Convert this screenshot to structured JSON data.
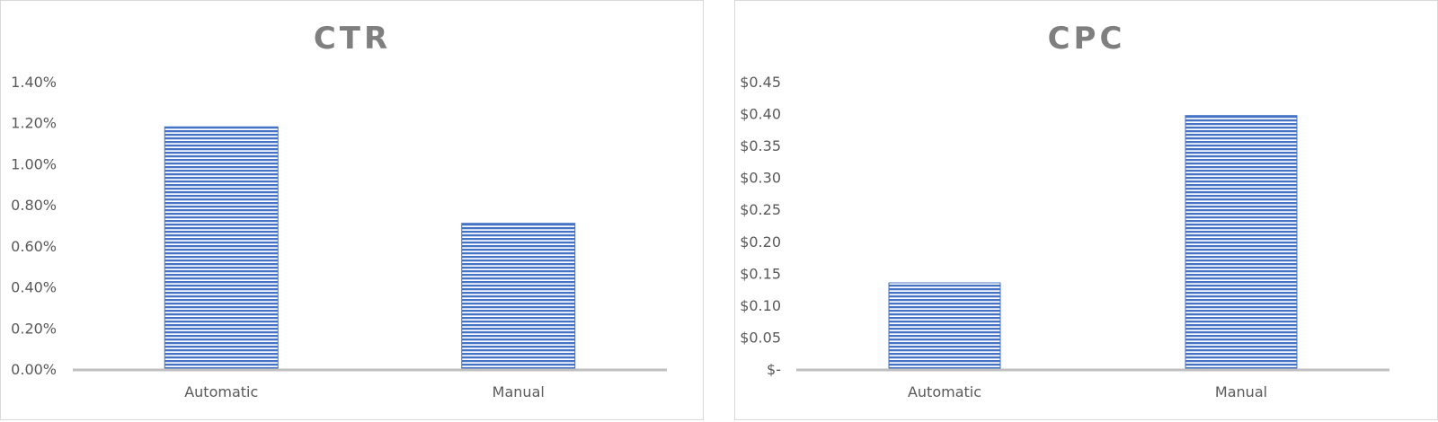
{
  "chart_data": [
    {
      "type": "bar",
      "title": "CTR",
      "categories": [
        "Automatic",
        "Manual"
      ],
      "values": [
        0.0118,
        0.0071
      ],
      "ylim": [
        0,
        0.014
      ],
      "yticks": [
        0,
        0.002,
        0.004,
        0.006,
        0.008,
        0.01,
        0.012,
        0.014
      ],
      "ytick_labels": [
        "0.00%",
        "0.20%",
        "0.40%",
        "0.60%",
        "0.80%",
        "1.00%",
        "1.20%",
        "1.40%"
      ],
      "xlabel": "",
      "ylabel": "",
      "grid": false,
      "legend": "none",
      "bar_color": "#4472c4"
    },
    {
      "type": "bar",
      "title": "CPC",
      "categories": [
        "Automatic",
        "Manual"
      ],
      "values": [
        0.135,
        0.397
      ],
      "ylim": [
        0,
        0.45
      ],
      "yticks": [
        0,
        0.05,
        0.1,
        0.15,
        0.2,
        0.25,
        0.3,
        0.35,
        0.4,
        0.45
      ],
      "ytick_labels": [
        "$-",
        "$0.05",
        "$0.10",
        "$0.15",
        "$0.20",
        "$0.25",
        "$0.30",
        "$0.35",
        "$0.40",
        "$0.45"
      ],
      "xlabel": "",
      "ylabel": "",
      "grid": false,
      "legend": "none",
      "bar_color": "#4472c4"
    }
  ]
}
